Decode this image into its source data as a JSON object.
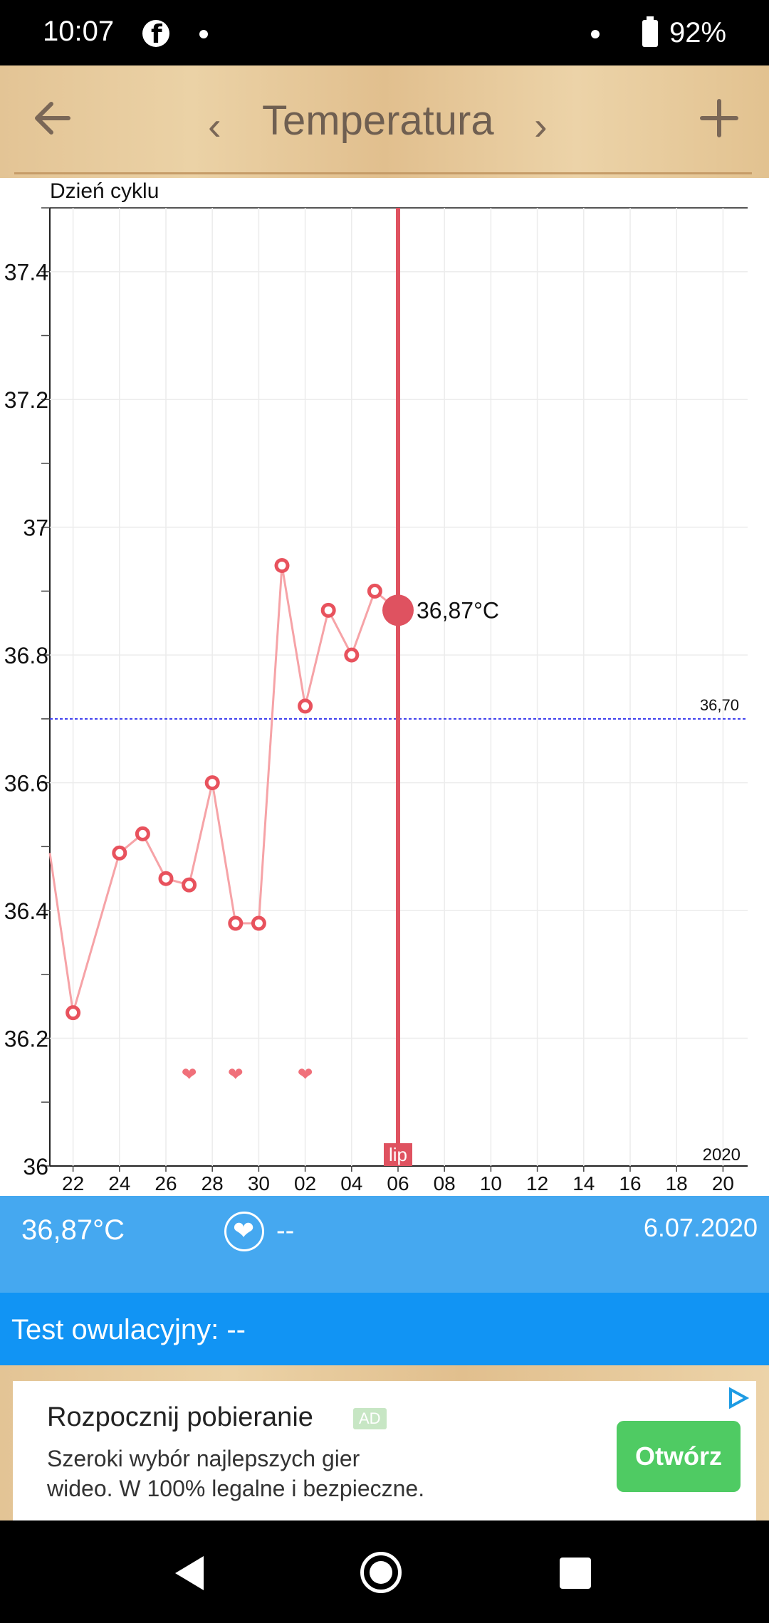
{
  "status_bar": {
    "time": "10:07",
    "battery": "92%"
  },
  "header": {
    "title": "Temperatura",
    "prev": "‹",
    "next": "›"
  },
  "chart_data": {
    "type": "line",
    "title": "",
    "top_label": "Dzień cyklu",
    "ylim": [
      36,
      37.5
    ],
    "y_ticks": [
      36,
      36.2,
      36.4,
      36.6,
      36.8,
      37,
      37.2,
      37.4
    ],
    "y_tick_labels": [
      "36",
      "36.2",
      "36.4",
      "36.6",
      "36.8",
      "37",
      "37.2",
      "37.4"
    ],
    "x_tick_labels": [
      "22",
      "24",
      "26",
      "28",
      "30",
      "02",
      "04",
      "06",
      "08",
      "10",
      "12",
      "14",
      "16",
      "18",
      "20"
    ],
    "x": [
      "2020-06-21",
      "2020-06-22",
      "2020-06-24",
      "2020-06-25",
      "2020-06-26",
      "2020-06-27",
      "2020-06-28",
      "2020-06-29",
      "2020-06-30",
      "2020-07-01",
      "2020-07-02",
      "2020-07-03",
      "2020-07-04",
      "2020-07-05",
      "2020-07-06"
    ],
    "values": [
      36.49,
      36.24,
      36.49,
      36.52,
      36.45,
      36.44,
      36.6,
      36.38,
      36.38,
      36.94,
      36.72,
      36.87,
      36.8,
      36.9,
      36.87
    ],
    "cover_line": {
      "value": 36.7,
      "label": "36,70"
    },
    "intercourse_days": [
      "2020-06-27",
      "2020-06-29",
      "2020-07-02"
    ],
    "selected": {
      "date": "2020-07-06",
      "value": 36.87,
      "label": "36,87°C",
      "month_label": "lip"
    },
    "year_label": "2020",
    "colors": {
      "line": "#f6a3a7",
      "marker": "#e8525d",
      "selected": "#df5260",
      "cover": "#3a3aee",
      "heart": "#f0707a"
    }
  },
  "info_bar": {
    "temperature": "36,87°C",
    "intimacy": "--",
    "date": "6.07.2020"
  },
  "ovulation_bar": {
    "text": "Test owulacyjny: --"
  },
  "ad": {
    "title": "Rozpocznij pobieranie",
    "badge": "AD",
    "text": "Szeroki wybór najlepszych gier wideo. W 100% legalne i bezpieczne.",
    "button": "Otwórz"
  }
}
